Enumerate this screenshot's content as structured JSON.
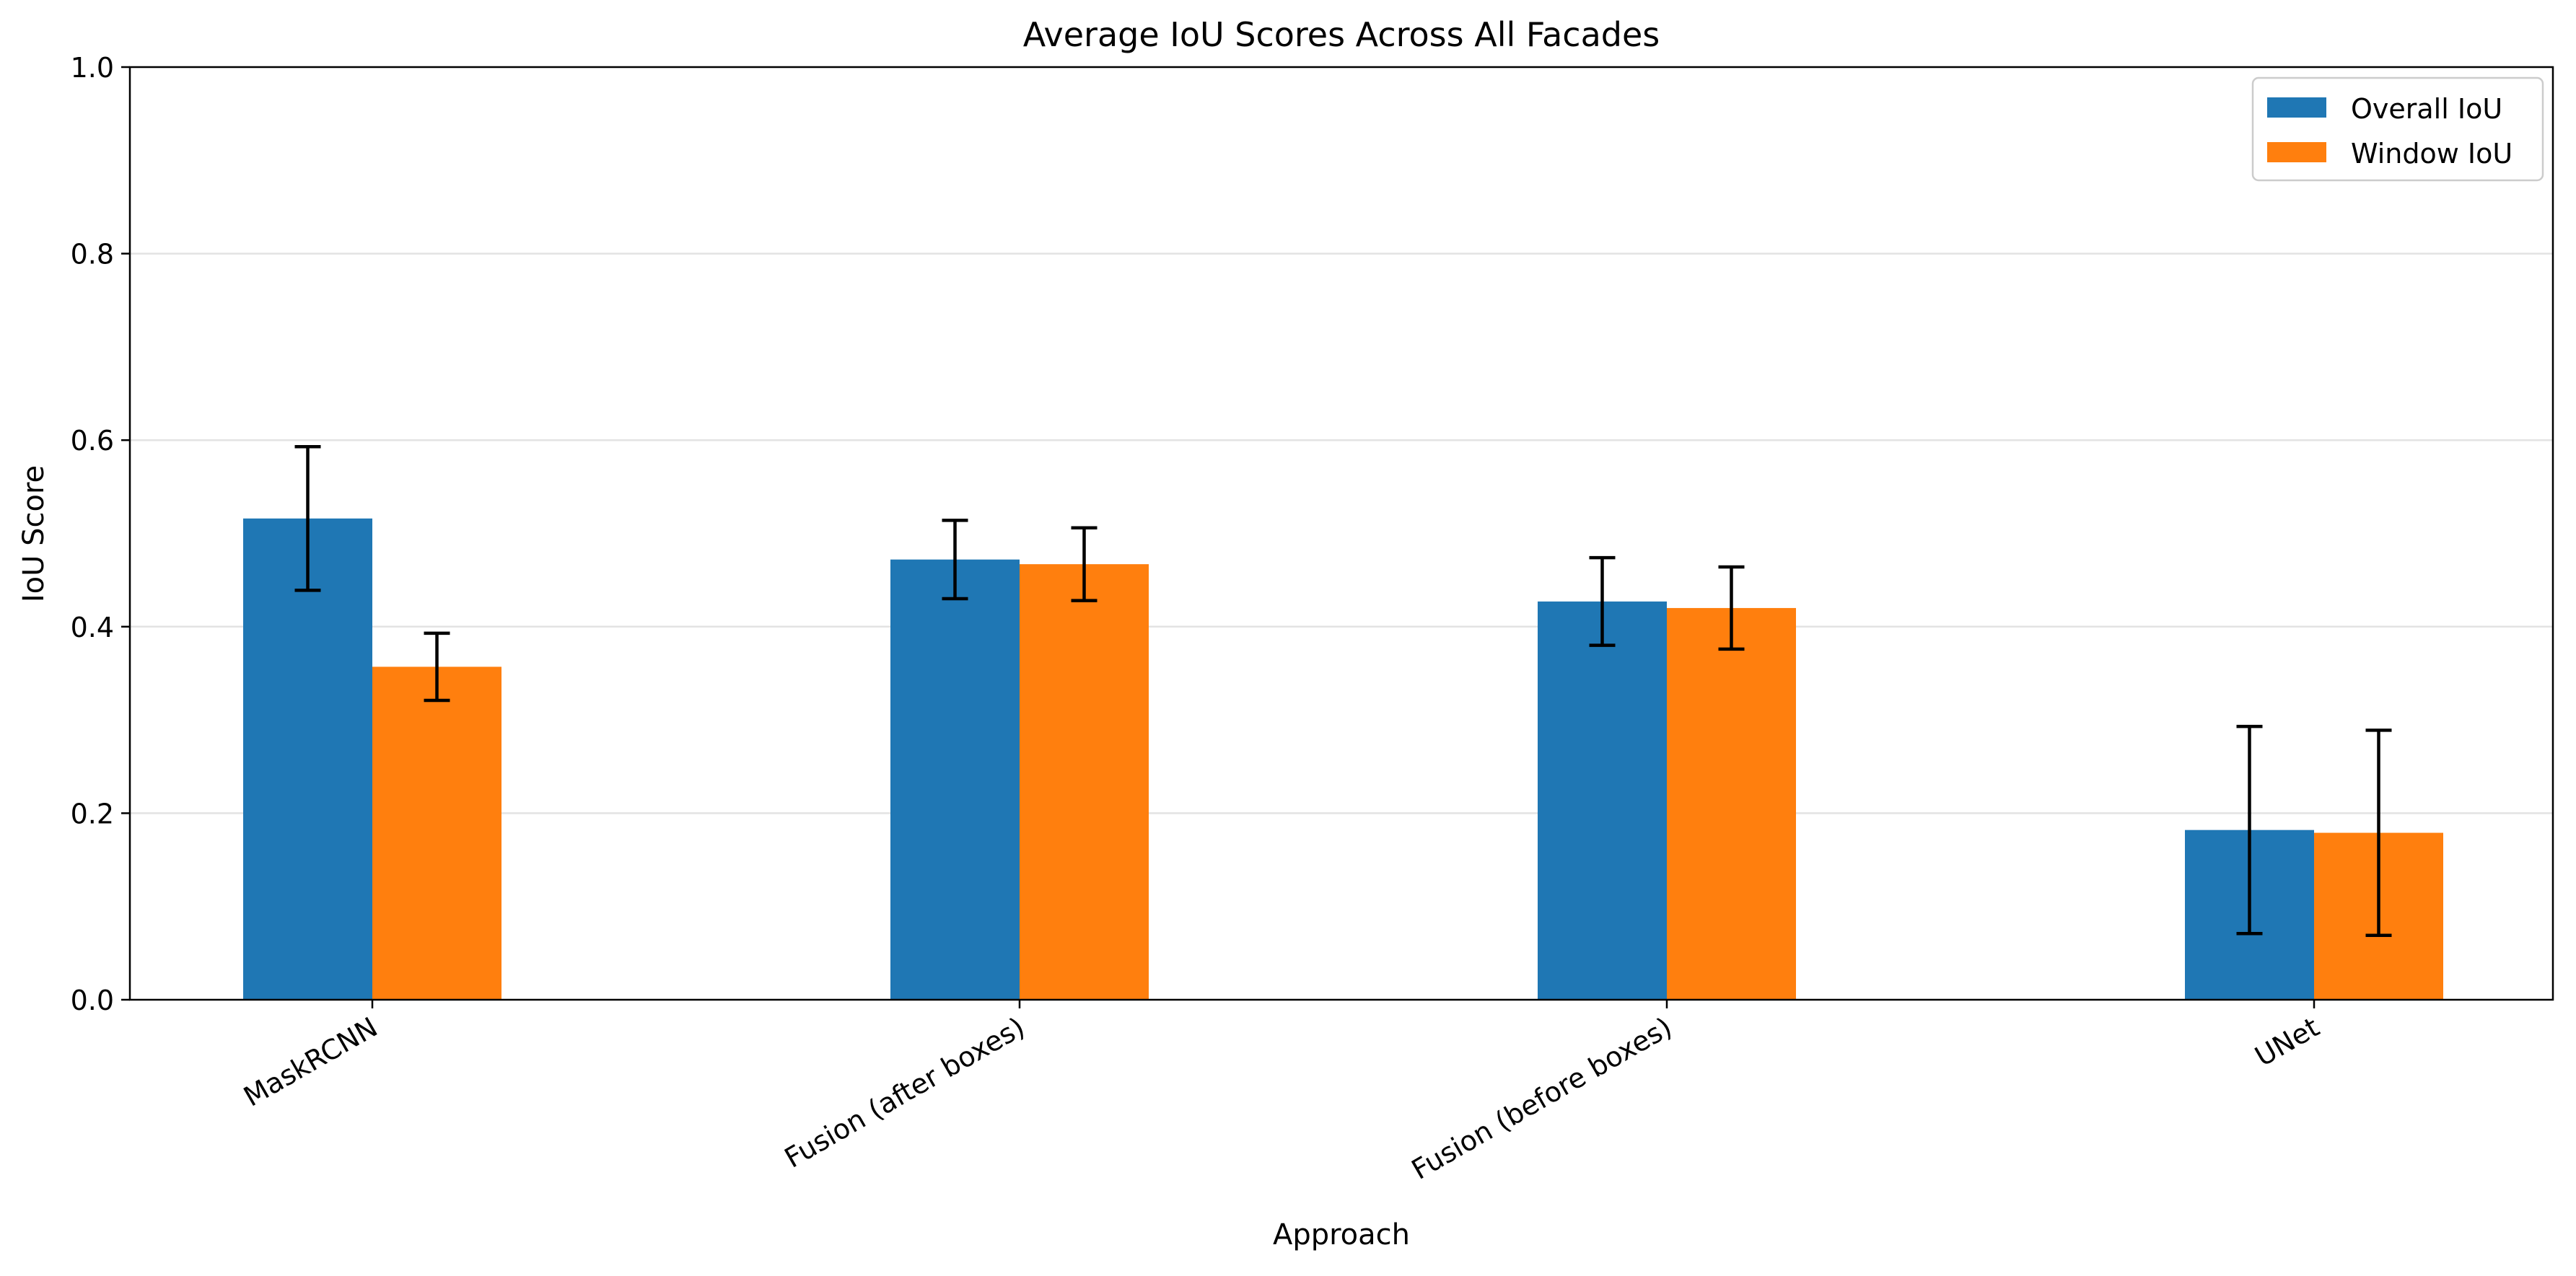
{
  "chart_data": {
    "type": "bar",
    "title": "Average IoU Scores Across All Facades",
    "xlabel": "Approach",
    "ylabel": "IoU Score",
    "ylim": [
      0,
      1.0
    ],
    "yticks": [
      0.0,
      0.2,
      0.4,
      0.6,
      0.8,
      1.0
    ],
    "ytick_labels": [
      "0.0",
      "0.2",
      "0.4",
      "0.6",
      "0.8",
      "1.0"
    ],
    "categories": [
      "MaskRCNN",
      "Fusion (after boxes)",
      "Fusion (before boxes)",
      "UNet"
    ],
    "series": [
      {
        "name": "Overall IoU",
        "color": "#1f77b4",
        "values": [
          0.516,
          0.472,
          0.427,
          0.182
        ],
        "errors": [
          0.077,
          0.042,
          0.047,
          0.111
        ]
      },
      {
        "name": "Window IoU",
        "color": "#ff7f0e",
        "values": [
          0.357,
          0.467,
          0.42,
          0.179
        ],
        "errors": [
          0.036,
          0.039,
          0.044,
          0.11
        ]
      }
    ],
    "error_bars": true,
    "grid": "y",
    "legend_position": "top-right",
    "xtick_rotation": "angled"
  }
}
